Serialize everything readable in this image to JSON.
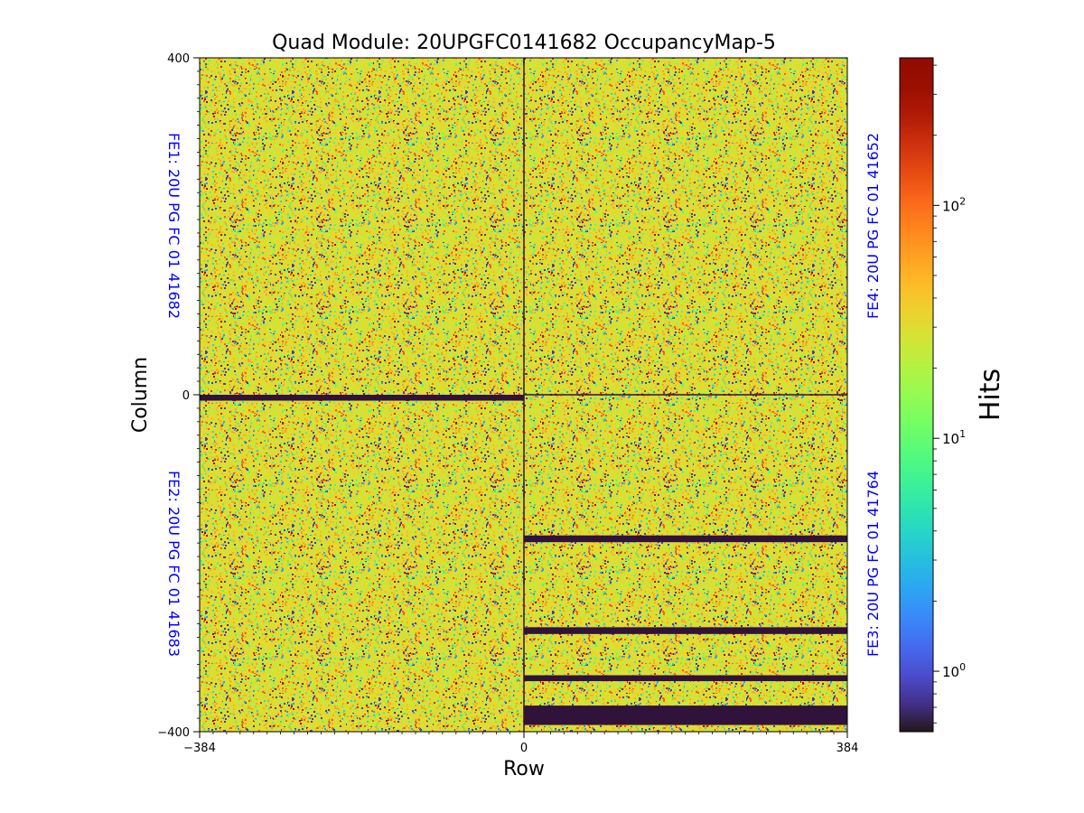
{
  "chart_data": {
    "type": "heatmap",
    "title": "Quad Module: 20UPGFC0141682 OccupancyMap-5",
    "xlabel": "Row",
    "ylabel": "Column",
    "xlim": [
      -384,
      384
    ],
    "ylim": [
      -400,
      400
    ],
    "x_ticks": [
      "−384",
      "0",
      "384"
    ],
    "y_ticks": [
      "400",
      "0",
      "−400"
    ],
    "colormap": "turbo",
    "colorbar": {
      "label": "Hits",
      "scale": "log",
      "range": [
        0.55,
        430
      ],
      "ticks": [
        {
          "value": 100,
          "base": "10",
          "exp": "2"
        },
        {
          "value": 10,
          "base": "10",
          "exp": "1"
        },
        {
          "value": 1,
          "base": "10",
          "exp": "0"
        }
      ]
    },
    "chips": [
      {
        "id": "FE1",
        "label": "FE1: 20U PG FC 01 41682",
        "quadrant": "top-left",
        "dominant_hits": "≈20–40"
      },
      {
        "id": "FE4",
        "label": "FE4: 20U PG FC 01 41652",
        "quadrant": "top-right",
        "dominant_hits": "≈20–40"
      },
      {
        "id": "FE2",
        "label": "FE2: 20U PG FC 01 41683",
        "quadrant": "bottom-left",
        "dominant_hits": "≈20–40"
      },
      {
        "id": "FE3",
        "label": "FE3: 20U PG FC 01 41764",
        "quadrant": "bottom-right",
        "dominant_hits": "≈20–40"
      }
    ],
    "dead_bands": [
      {
        "x_range": [
          -384,
          0
        ],
        "y_range": [
          -7,
          0
        ]
      },
      {
        "x_range": [
          0,
          384
        ],
        "y_range": [
          -175,
          -167
        ]
      },
      {
        "x_range": [
          0,
          384
        ],
        "y_range": [
          -284,
          -276
        ]
      },
      {
        "x_range": [
          0,
          384
        ],
        "y_range": [
          -340,
          -333
        ]
      },
      {
        "x_range": [
          0,
          384
        ],
        "y_range": [
          -392,
          -369
        ]
      }
    ]
  },
  "colors": {
    "fe_label": "#0000ff",
    "dead": "#30123b"
  }
}
